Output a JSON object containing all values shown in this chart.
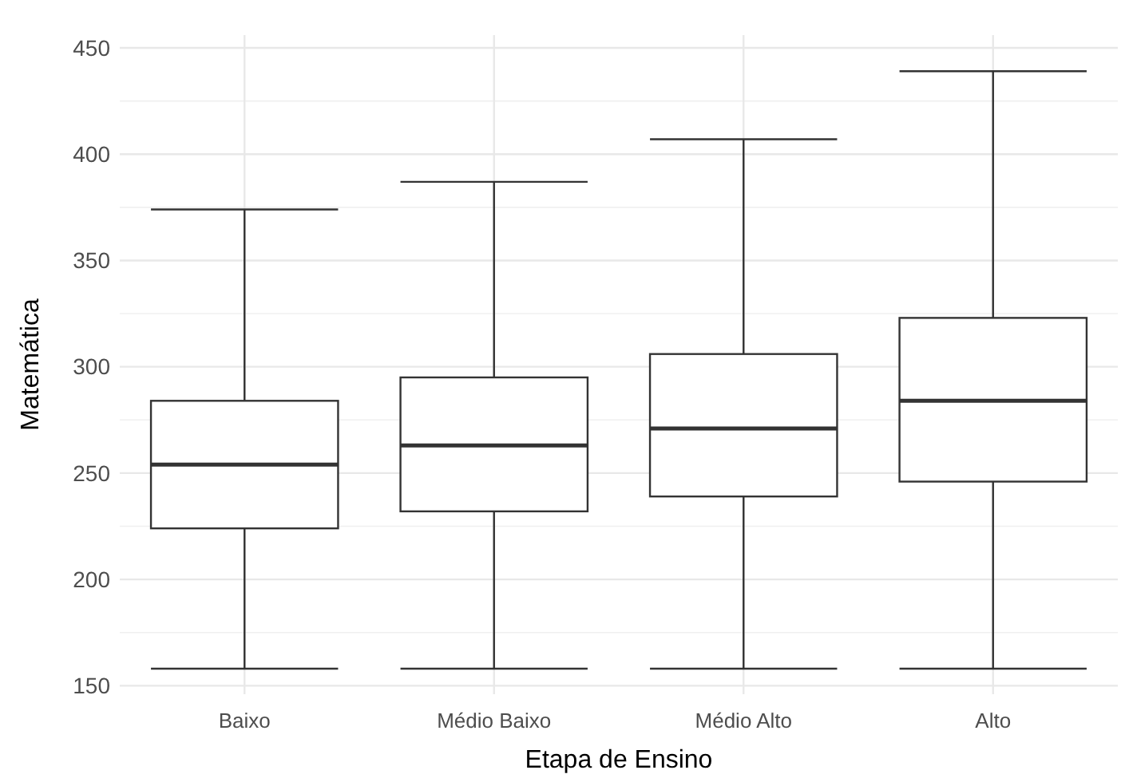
{
  "chart_data": {
    "type": "box",
    "xlabel": "Etapa de Ensino",
    "ylabel": "Matemática",
    "categories": [
      "Baixo",
      "Médio Baixo",
      "Médio Alto",
      "Alto"
    ],
    "boxes": [
      {
        "low": 158,
        "q1": 224,
        "median": 254,
        "q3": 284,
        "high": 374
      },
      {
        "low": 158,
        "q1": 232,
        "median": 263,
        "q3": 295,
        "high": 387
      },
      {
        "low": 158,
        "q1": 239,
        "median": 271,
        "q3": 306,
        "high": 407
      },
      {
        "low": 158,
        "q1": 246,
        "median": 284,
        "q3": 323,
        "high": 439
      }
    ],
    "ylim": [
      146,
      456
    ],
    "yticks": [
      150,
      200,
      250,
      300,
      350,
      400,
      450
    ],
    "grid": true
  }
}
